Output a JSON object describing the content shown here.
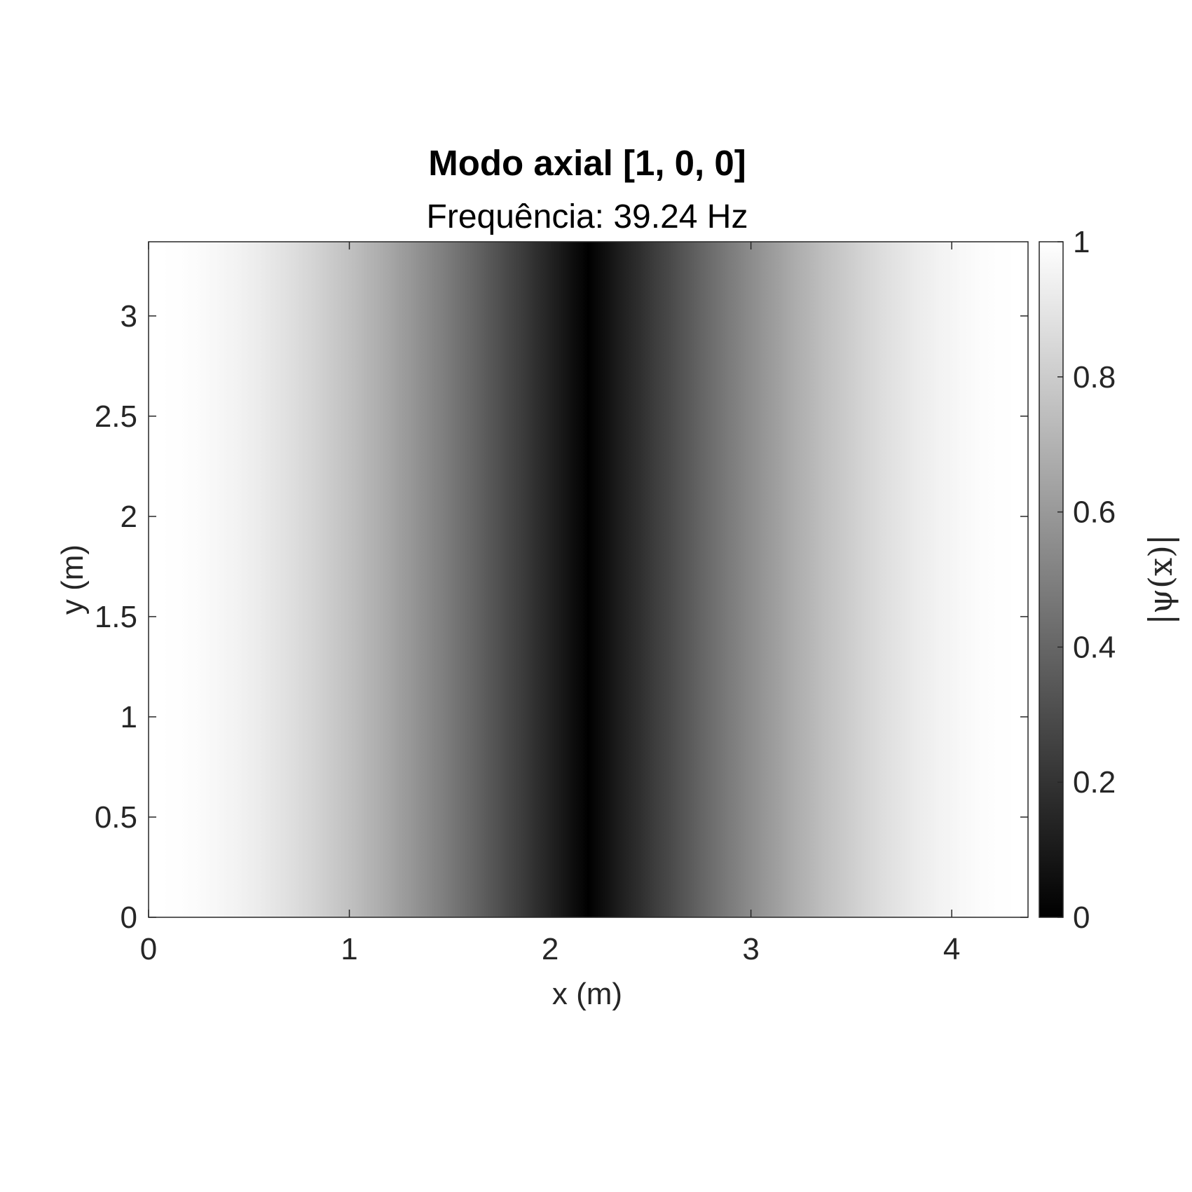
{
  "chart_data": {
    "type": "heatmap",
    "title": "Modo axial [1, 0, 0]",
    "subtitle": "Frequência: 39.24 Hz",
    "xlabel": "x (m)",
    "ylabel": "y (m)",
    "colorbar_label": "|ψ(x)|",
    "xlim": [
      0,
      4.38
    ],
    "ylim": [
      0,
      3.37
    ],
    "clim": [
      0,
      1
    ],
    "colormap": "gray",
    "grid": false,
    "mode": [
      1,
      0,
      0
    ],
    "frequency_hz": 39.24,
    "field": "abs(cos(pi*x/4.38))",
    "xticks": [
      0,
      1,
      2,
      3,
      4
    ],
    "xtick_labels": [
      "0",
      "1",
      "2",
      "3",
      "4"
    ],
    "yticks": [
      0,
      0.5,
      1,
      1.5,
      2,
      2.5,
      3
    ],
    "ytick_labels": [
      "0",
      "0.5",
      "1",
      "1.5",
      "2",
      "2.5",
      "3"
    ],
    "cticks": [
      0,
      0.2,
      0.4,
      0.6,
      0.8,
      1
    ],
    "ctick_labels": [
      "0",
      "0.2",
      "0.4",
      "0.6",
      "0.8",
      "1"
    ],
    "profile": {
      "x": [
        0,
        0.5,
        1,
        1.5,
        2,
        2.19,
        2.5,
        3,
        3.5,
        4,
        4.38
      ],
      "value": [
        1,
        0.94,
        0.76,
        0.48,
        0.14,
        0,
        0.22,
        0.54,
        0.81,
        0.96,
        1
      ]
    }
  },
  "colors": {
    "background": "#ffffff",
    "axis": "#262626",
    "title": "#000000"
  }
}
